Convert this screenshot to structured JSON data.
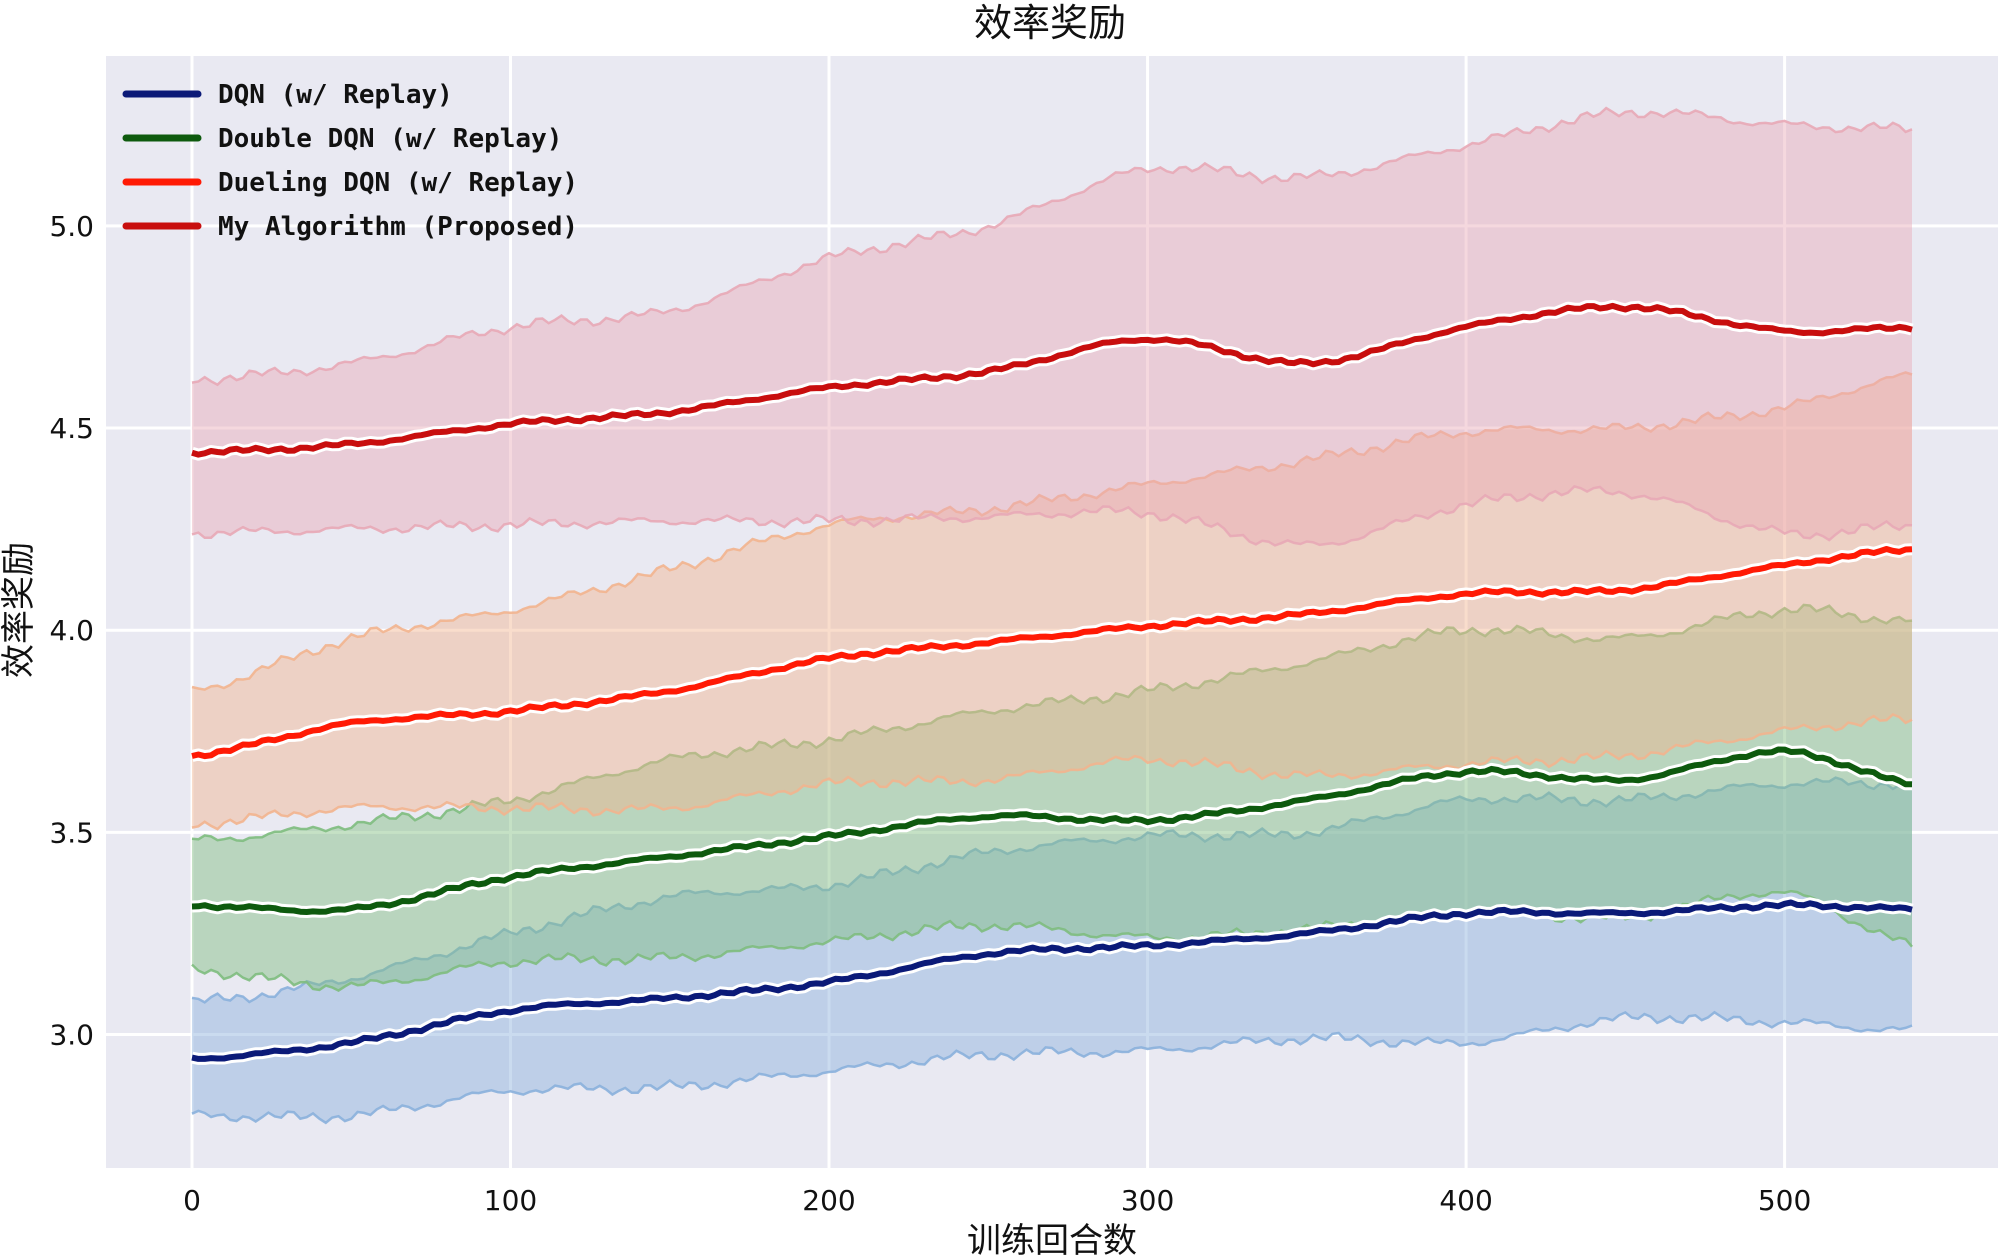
{
  "chart_data": {
    "type": "line",
    "title": "效率奖励",
    "xlabel": "训练回合数",
    "ylabel": "效率奖励",
    "xlim": [
      -27,
      567
    ],
    "ylim": [
      2.67,
      5.42
    ],
    "x_ticks": [
      0,
      100,
      200,
      300,
      400,
      500
    ],
    "y_ticks": [
      3.0,
      3.5,
      4.0,
      4.5,
      5.0
    ],
    "grid": true,
    "legend_position": "top-left",
    "series": [
      {
        "name": "DQN (w/ Replay)",
        "color": "#0b1a78",
        "band_color": "#8ab0dc",
        "x": [
          0,
          50,
          100,
          150,
          200,
          250,
          300,
          350,
          400,
          450,
          500,
          540
        ],
        "mean": [
          2.94,
          2.98,
          3.06,
          3.09,
          3.13,
          3.2,
          3.22,
          3.25,
          3.3,
          3.3,
          3.32,
          3.31
        ],
        "upper": [
          3.08,
          3.14,
          3.25,
          3.34,
          3.37,
          3.45,
          3.49,
          3.5,
          3.58,
          3.58,
          3.62,
          3.62
        ],
        "lower": [
          2.8,
          2.8,
          2.86,
          2.87,
          2.91,
          2.95,
          2.96,
          2.99,
          2.98,
          3.04,
          3.03,
          3.01
        ]
      },
      {
        "name": "Double DQN (w/ Replay)",
        "color": "#0e5a0e",
        "band_color": "#7ebd7e",
        "x": [
          0,
          50,
          100,
          150,
          200,
          250,
          300,
          350,
          400,
          450,
          500,
          540
        ],
        "mean": [
          3.32,
          3.31,
          3.39,
          3.44,
          3.49,
          3.54,
          3.53,
          3.58,
          3.65,
          3.63,
          3.7,
          3.62
        ],
        "upper": [
          3.48,
          3.52,
          3.58,
          3.68,
          3.73,
          3.8,
          3.85,
          3.92,
          4.0,
          3.98,
          4.05,
          4.02
        ],
        "lower": [
          3.16,
          3.12,
          3.18,
          3.19,
          3.23,
          3.27,
          3.24,
          3.26,
          3.3,
          3.29,
          3.35,
          3.22
        ]
      },
      {
        "name": "Dueling DQN (w/ Replay)",
        "color": "#ff1a05",
        "band_color": "#f2b48e",
        "x": [
          0,
          50,
          100,
          150,
          200,
          250,
          300,
          350,
          400,
          450,
          500,
          540
        ],
        "mean": [
          3.69,
          3.77,
          3.8,
          3.85,
          3.93,
          3.97,
          4.01,
          4.04,
          4.09,
          4.1,
          4.16,
          4.2
        ],
        "upper": [
          3.85,
          3.98,
          4.05,
          4.15,
          4.26,
          4.3,
          4.36,
          4.42,
          4.49,
          4.5,
          4.55,
          4.63
        ],
        "lower": [
          3.52,
          3.56,
          3.56,
          3.56,
          3.62,
          3.63,
          3.68,
          3.64,
          3.67,
          3.69,
          3.75,
          3.78
        ]
      },
      {
        "name": "My Algorithm (Proposed)",
        "color": "#c80e0e",
        "band_color": "#e8a8b6",
        "x": [
          0,
          50,
          100,
          150,
          200,
          250,
          300,
          350,
          400,
          450,
          500,
          540
        ],
        "mean": [
          4.44,
          4.46,
          4.51,
          4.54,
          4.6,
          4.64,
          4.72,
          4.66,
          4.75,
          4.8,
          4.74,
          4.75
        ],
        "upper": [
          4.62,
          4.66,
          4.75,
          4.79,
          4.92,
          5.0,
          5.14,
          5.12,
          5.2,
          5.28,
          5.25,
          5.24
        ],
        "lower": [
          4.24,
          4.25,
          4.26,
          4.27,
          4.27,
          4.28,
          4.29,
          4.21,
          4.31,
          4.34,
          4.24,
          4.26
        ]
      }
    ]
  }
}
